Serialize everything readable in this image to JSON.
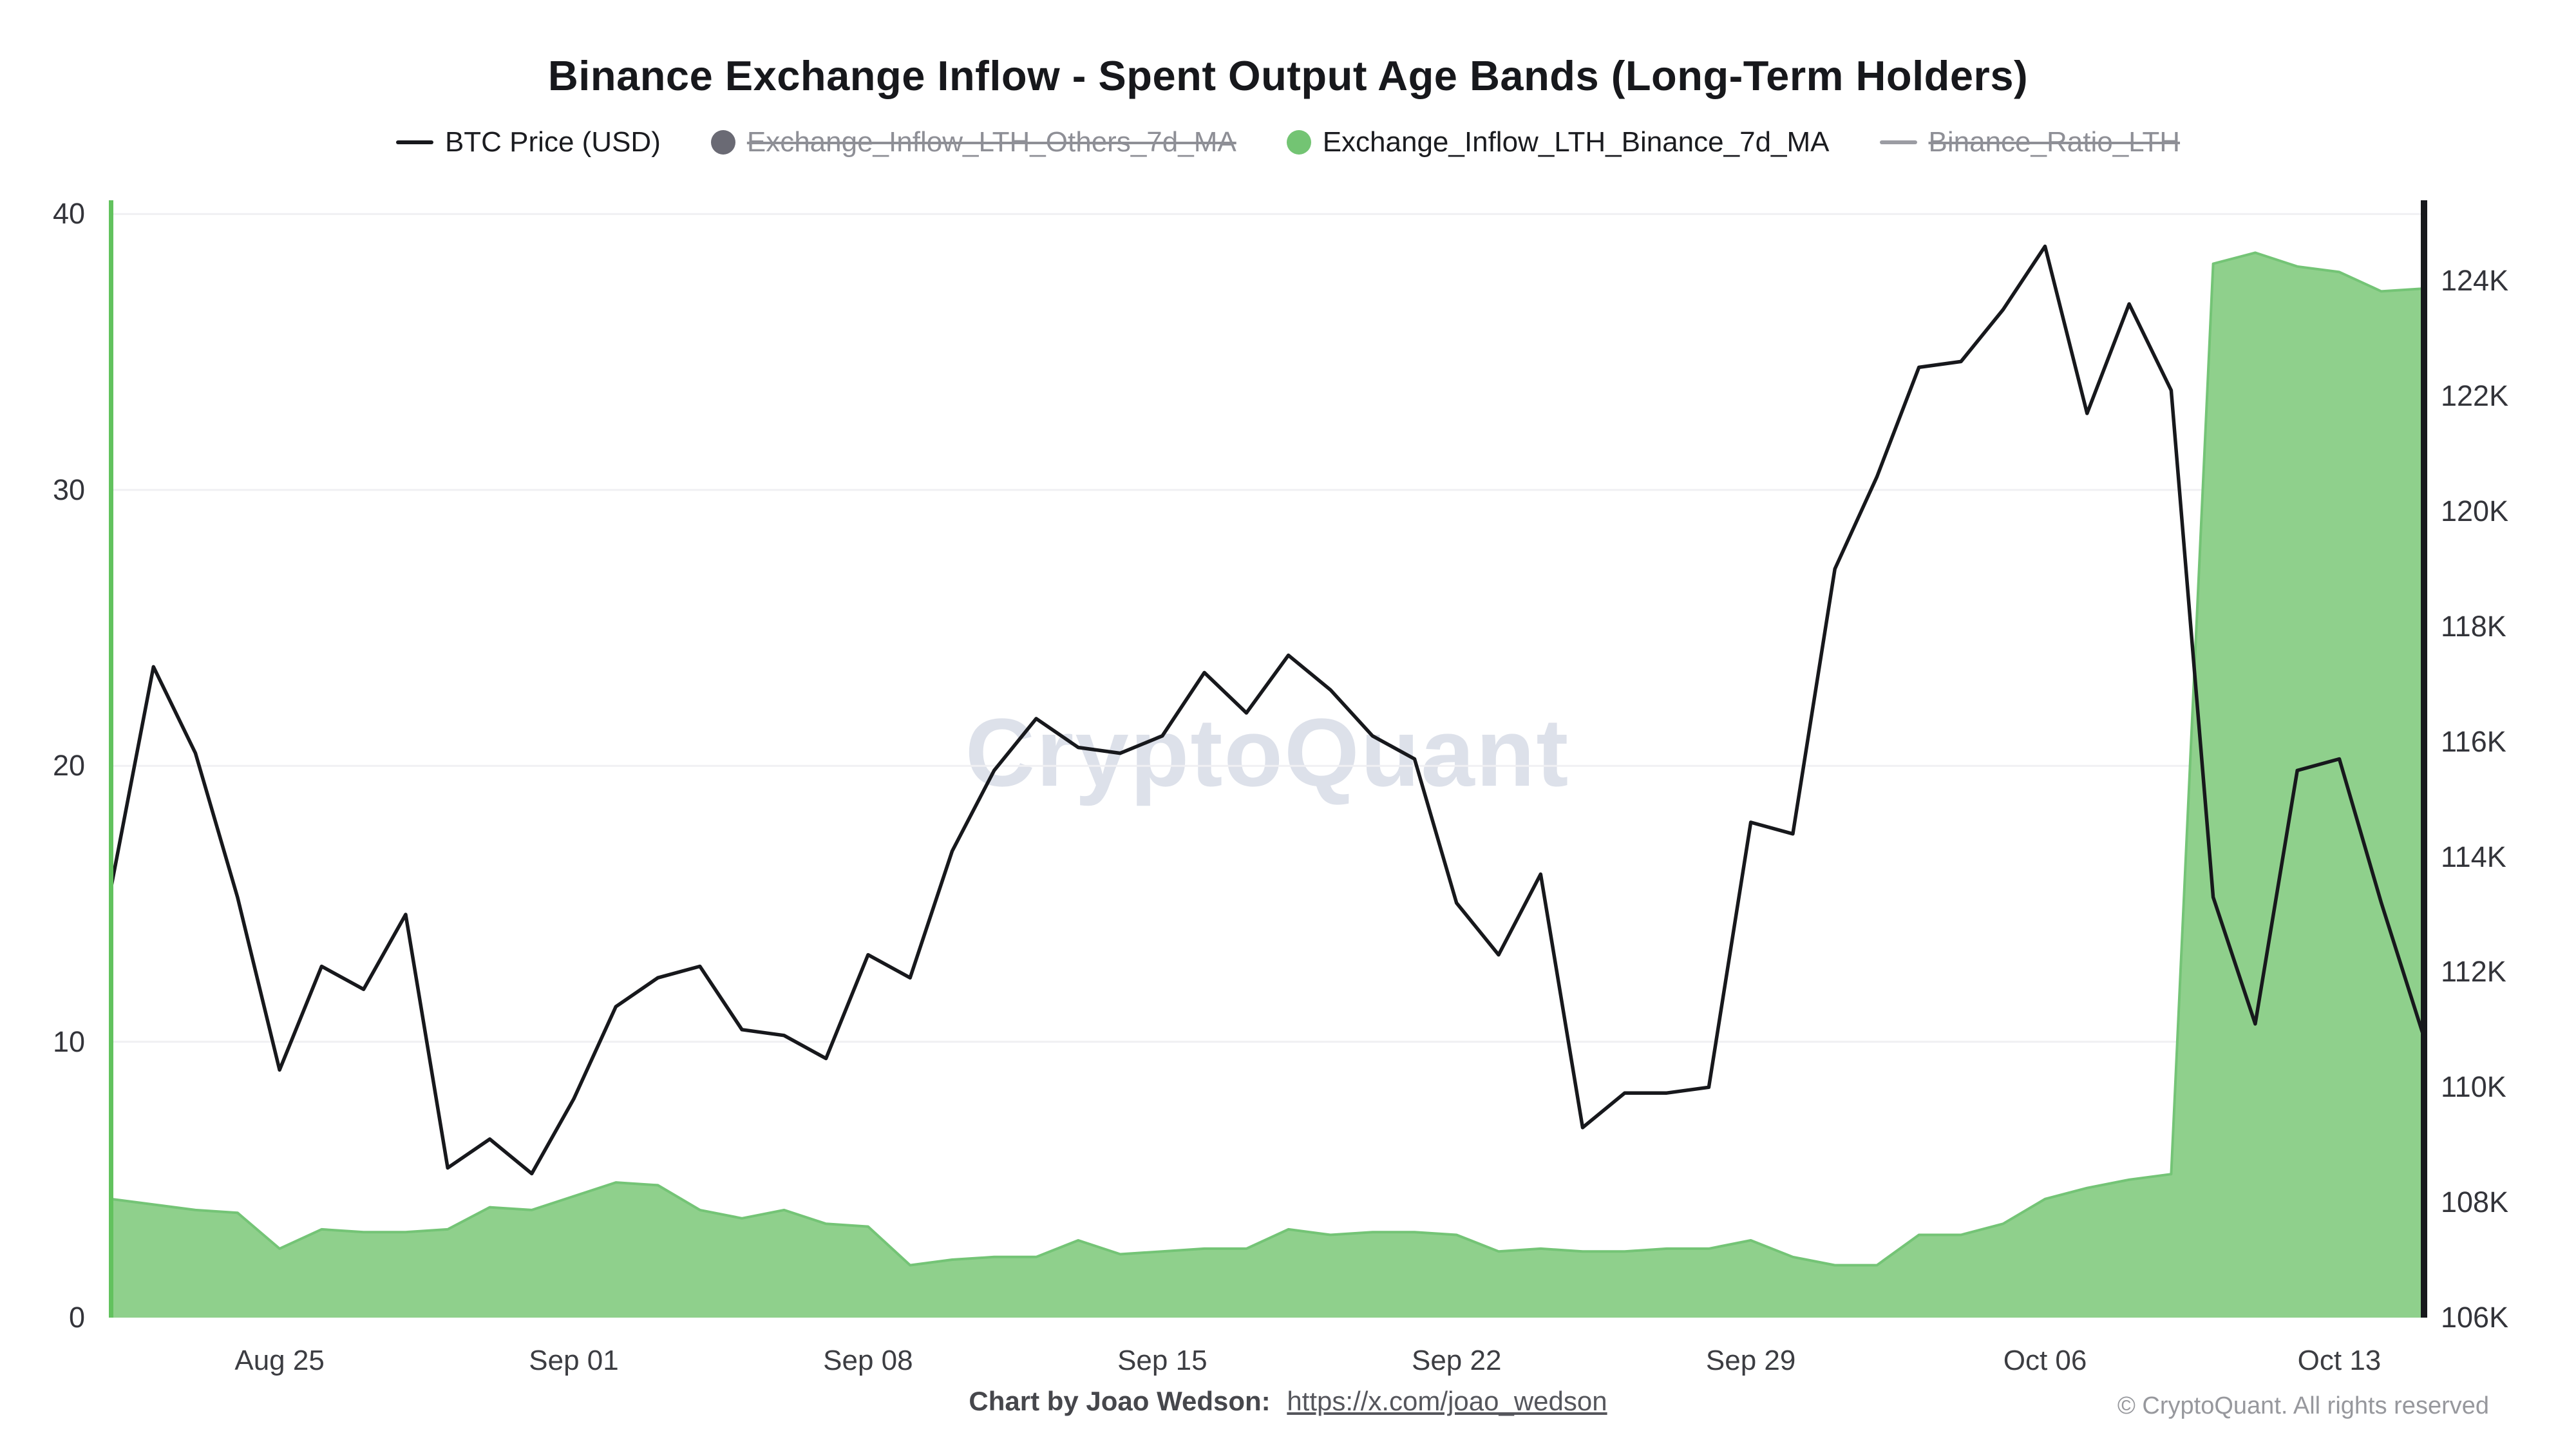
{
  "title": "Binance Exchange Inflow - Spent Output Age Bands (Long-Term Holders)",
  "watermark": "CryptoQuant",
  "legend": {
    "items": [
      {
        "label": "BTC Price (USD)",
        "marker": "line",
        "color": "#17181c",
        "disabled": false
      },
      {
        "label": "Exchange_Inflow_LTH_Others_7d_MA",
        "marker": "circle",
        "color": "#6a6a74",
        "disabled": true
      },
      {
        "label": "Exchange_Inflow_LTH_Binance_7d_MA",
        "marker": "circle",
        "color": "#73c473",
        "disabled": false
      },
      {
        "label": "Binance_Ratio_LTH",
        "marker": "line",
        "color": "#9b9ca3",
        "disabled": true
      }
    ]
  },
  "footer": {
    "credit_label": "Chart by Joao Wedson:",
    "credit_link": "https://x.com/joao_wedson",
    "copyright": "© CryptoQuant. All rights reserved"
  },
  "chart_data": {
    "type": "line",
    "x": [
      "Aug 21",
      "Aug 22",
      "Aug 23",
      "Aug 24",
      "Aug 25",
      "Aug 26",
      "Aug 27",
      "Aug 28",
      "Aug 29",
      "Aug 30",
      "Aug 31",
      "Sep 01",
      "Sep 02",
      "Sep 03",
      "Sep 04",
      "Sep 05",
      "Sep 06",
      "Sep 07",
      "Sep 08",
      "Sep 09",
      "Sep 10",
      "Sep 11",
      "Sep 12",
      "Sep 13",
      "Sep 14",
      "Sep 15",
      "Sep 16",
      "Sep 17",
      "Sep 18",
      "Sep 19",
      "Sep 20",
      "Sep 21",
      "Sep 22",
      "Sep 23",
      "Sep 24",
      "Sep 25",
      "Sep 26",
      "Sep 27",
      "Sep 28",
      "Sep 29",
      "Sep 30",
      "Oct 01",
      "Oct 02",
      "Oct 03",
      "Oct 04",
      "Oct 05",
      "Oct 06",
      "Oct 07",
      "Oct 08",
      "Oct 09",
      "Oct 10",
      "Oct 11",
      "Oct 12",
      "Oct 13",
      "Oct 14",
      "Oct 15"
    ],
    "x_ticks": [
      "Aug 25",
      "Sep 01",
      "Sep 08",
      "Sep 15",
      "Sep 22",
      "Sep 29",
      "Oct 06",
      "Oct 13"
    ],
    "x_tick_indices": [
      4,
      11,
      18,
      25,
      32,
      39,
      46,
      53
    ],
    "left_axis": {
      "ticks": [
        0,
        10,
        20,
        30,
        40
      ],
      "range": [
        0,
        40.5
      ]
    },
    "right_axis": {
      "tick_labels": [
        "106K",
        "108K",
        "110K",
        "112K",
        "114K",
        "116K",
        "118K",
        "120K",
        "122K",
        "124K"
      ],
      "tick_values": [
        106,
        108,
        110,
        112,
        114,
        116,
        118,
        120,
        122,
        124
      ],
      "range": [
        106,
        125.4
      ],
      "unit": "USD (thousands)"
    },
    "grid_color": "#f0f0f3",
    "series": [
      {
        "name": "Exchange_Inflow_LTH_Binance_7d_MA",
        "type": "area",
        "axis": "left",
        "fill_color": "#8fd08c",
        "line_color": "#74c476",
        "values": [
          4.3,
          4.1,
          3.9,
          3.8,
          2.5,
          3.2,
          3.1,
          3.1,
          3.2,
          4.0,
          3.9,
          4.4,
          4.9,
          4.8,
          3.9,
          3.6,
          3.9,
          3.4,
          3.3,
          1.9,
          2.1,
          2.2,
          2.2,
          2.8,
          2.3,
          2.4,
          2.5,
          2.5,
          3.2,
          3.0,
          3.1,
          3.1,
          3.0,
          2.4,
          2.5,
          2.4,
          2.4,
          2.5,
          2.5,
          2.8,
          2.2,
          1.9,
          1.9,
          3.0,
          3.0,
          3.4,
          4.3,
          4.7,
          5.0,
          5.2,
          38.2,
          38.6,
          38.1,
          37.9,
          37.2,
          37.3
        ]
      },
      {
        "name": "BTC Price (USD)",
        "type": "line",
        "axis": "right",
        "line_color": "#17181c",
        "values_unit": "thousand USD",
        "values": [
          113.5,
          117.3,
          115.8,
          113.3,
          110.3,
          112.1,
          111.7,
          113.0,
          108.6,
          109.1,
          108.5,
          109.8,
          111.4,
          111.9,
          112.1,
          111.0,
          110.9,
          110.5,
          112.3,
          111.9,
          114.1,
          115.5,
          116.4,
          115.9,
          115.8,
          116.1,
          117.2,
          116.5,
          117.5,
          116.9,
          116.1,
          115.7,
          113.2,
          112.3,
          113.7,
          109.3,
          109.9,
          109.9,
          110.0,
          114.6,
          114.4,
          119.0,
          120.6,
          122.5,
          122.6,
          123.5,
          124.6,
          121.7,
          123.6,
          122.1,
          113.3,
          111.1,
          115.5,
          115.7,
          113.2,
          110.9
        ]
      }
    ]
  }
}
